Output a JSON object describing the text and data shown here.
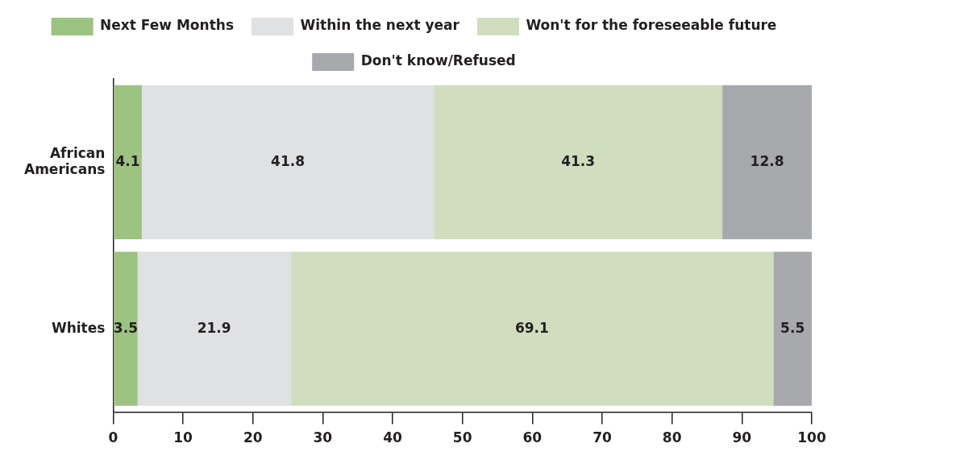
{
  "chart_data": {
    "type": "bar",
    "orientation": "horizontal",
    "stacked": true,
    "categories": [
      "African Americans",
      "Whites"
    ],
    "series": [
      {
        "name": "Next Few Months",
        "color": "#9dc383",
        "values": [
          4.1,
          3.5
        ]
      },
      {
        "name": "Within the next year",
        "color": "#e0e1e3",
        "values": [
          41.8,
          21.9
        ]
      },
      {
        "name": "Won't for the foreseeable future",
        "color": "#d0debf",
        "values": [
          41.3,
          69.1
        ]
      },
      {
        "name": "Don't know/Refused",
        "color": "#a7a9ac",
        "values": [
          12.8,
          5.5
        ]
      }
    ],
    "xlim": [
      0,
      100
    ],
    "xticks": [
      0,
      10,
      20,
      30,
      40,
      50,
      60,
      70,
      80,
      90,
      100
    ],
    "grid": false,
    "legend": "top",
    "data_labels": true
  }
}
